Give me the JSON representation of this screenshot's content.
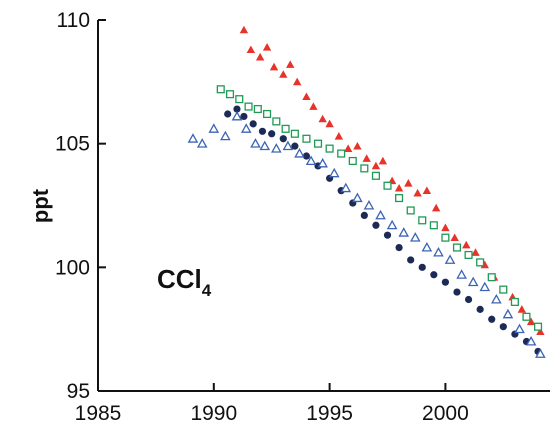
{
  "chart_data": {
    "type": "scatter",
    "title": "",
    "xlabel": "",
    "ylabel": "ppt",
    "annotation": {
      "main": "CCl",
      "subscript": "4"
    },
    "xlim": [
      1985,
      2004.3
    ],
    "ylim": [
      95,
      110
    ],
    "xticks": [
      1985,
      1990,
      1995,
      2000
    ],
    "xtick_labels": [
      "1985",
      "1990",
      "1995",
      "2000"
    ],
    "yticks": [
      95,
      100,
      105,
      110
    ],
    "ytick_labels": [
      "95",
      "100",
      "105",
      "110"
    ],
    "grid": false,
    "legend": "none",
    "series": [
      {
        "color": "#e8332a",
        "marker": "filled-triangle",
        "points": [
          [
            1991.3,
            109.6
          ],
          [
            1991.6,
            108.8
          ],
          [
            1992.0,
            108.5
          ],
          [
            1992.3,
            108.9
          ],
          [
            1992.6,
            108.1
          ],
          [
            1993.0,
            107.8
          ],
          [
            1993.3,
            108.2
          ],
          [
            1993.6,
            107.5
          ],
          [
            1994.0,
            106.9
          ],
          [
            1994.3,
            106.5
          ],
          [
            1994.7,
            106.0
          ],
          [
            1995.0,
            105.8
          ],
          [
            1995.4,
            105.3
          ],
          [
            1995.8,
            104.8
          ],
          [
            1996.2,
            104.9
          ],
          [
            1996.6,
            104.4
          ],
          [
            1997.0,
            104.1
          ],
          [
            1997.3,
            104.3
          ],
          [
            1997.7,
            103.5
          ],
          [
            1998.0,
            103.2
          ],
          [
            1998.4,
            103.4
          ],
          [
            1998.8,
            103.0
          ],
          [
            1999.2,
            103.1
          ],
          [
            1999.6,
            102.4
          ],
          [
            2000.0,
            101.6
          ],
          [
            2000.4,
            101.2
          ],
          [
            2000.9,
            100.9
          ],
          [
            2001.3,
            100.6
          ],
          [
            2001.7,
            100.1
          ],
          [
            2002.1,
            99.6
          ],
          [
            2002.5,
            99.1
          ],
          [
            2002.9,
            98.8
          ],
          [
            2003.3,
            98.3
          ],
          [
            2003.7,
            97.8
          ],
          [
            2004.1,
            97.4
          ]
        ]
      },
      {
        "color": "#1f9a55",
        "marker": "open-square",
        "points": [
          [
            1990.3,
            107.2
          ],
          [
            1990.7,
            107.0
          ],
          [
            1991.1,
            106.8
          ],
          [
            1991.5,
            106.5
          ],
          [
            1991.9,
            106.4
          ],
          [
            1992.3,
            106.2
          ],
          [
            1992.7,
            105.9
          ],
          [
            1993.1,
            105.6
          ],
          [
            1993.5,
            105.4
          ],
          [
            1994.0,
            105.2
          ],
          [
            1994.5,
            105.0
          ],
          [
            1995.0,
            104.8
          ],
          [
            1995.5,
            104.6
          ],
          [
            1996.0,
            104.3
          ],
          [
            1996.5,
            104.0
          ],
          [
            1997.0,
            103.7
          ],
          [
            1997.5,
            103.3
          ],
          [
            1998.0,
            102.8
          ],
          [
            1998.5,
            102.3
          ],
          [
            1999.0,
            101.9
          ],
          [
            1999.5,
            101.7
          ],
          [
            2000.0,
            101.2
          ],
          [
            2000.5,
            100.8
          ],
          [
            2001.0,
            100.5
          ],
          [
            2001.5,
            100.2
          ],
          [
            2002.0,
            99.6
          ],
          [
            2002.5,
            99.1
          ],
          [
            2003.0,
            98.6
          ],
          [
            2003.5,
            98.0
          ],
          [
            2004.0,
            97.6
          ]
        ]
      },
      {
        "color": "#1c2a55",
        "marker": "filled-circle",
        "points": [
          [
            1990.6,
            106.2
          ],
          [
            1991.0,
            106.4
          ],
          [
            1991.3,
            106.1
          ],
          [
            1991.7,
            105.8
          ],
          [
            1992.1,
            105.5
          ],
          [
            1992.5,
            105.4
          ],
          [
            1993.0,
            105.2
          ],
          [
            1993.5,
            104.9
          ],
          [
            1994.0,
            104.5
          ],
          [
            1994.5,
            104.1
          ],
          [
            1995.0,
            103.6
          ],
          [
            1995.5,
            103.1
          ],
          [
            1996.0,
            102.6
          ],
          [
            1996.5,
            102.1
          ],
          [
            1997.0,
            101.7
          ],
          [
            1997.5,
            101.3
          ],
          [
            1998.0,
            100.8
          ],
          [
            1998.5,
            100.3
          ],
          [
            1999.0,
            100.0
          ],
          [
            1999.5,
            99.7
          ],
          [
            2000.0,
            99.4
          ],
          [
            2000.5,
            99.0
          ],
          [
            2001.0,
            98.7
          ],
          [
            2001.5,
            98.3
          ],
          [
            2002.0,
            97.9
          ],
          [
            2002.5,
            97.6
          ],
          [
            2003.0,
            97.3
          ],
          [
            2003.5,
            97.0
          ],
          [
            2004.0,
            96.6
          ]
        ]
      },
      {
        "color": "#3b64b4",
        "marker": "open-triangle",
        "points": [
          [
            1989.1,
            105.2
          ],
          [
            1989.5,
            105.0
          ],
          [
            1990.0,
            105.6
          ],
          [
            1990.5,
            105.3
          ],
          [
            1991.0,
            106.1
          ],
          [
            1991.4,
            105.6
          ],
          [
            1991.8,
            105.0
          ],
          [
            1992.2,
            104.9
          ],
          [
            1992.7,
            104.8
          ],
          [
            1993.2,
            104.9
          ],
          [
            1993.7,
            104.6
          ],
          [
            1994.2,
            104.3
          ],
          [
            1994.7,
            104.2
          ],
          [
            1995.2,
            103.8
          ],
          [
            1995.7,
            103.2
          ],
          [
            1996.2,
            102.8
          ],
          [
            1996.7,
            102.5
          ],
          [
            1997.2,
            102.1
          ],
          [
            1997.7,
            101.7
          ],
          [
            1998.2,
            101.4
          ],
          [
            1998.7,
            101.2
          ],
          [
            1999.2,
            100.8
          ],
          [
            1999.7,
            100.6
          ],
          [
            2000.2,
            100.3
          ],
          [
            2000.7,
            99.7
          ],
          [
            2001.2,
            99.4
          ],
          [
            2001.7,
            99.2
          ],
          [
            2002.2,
            98.7
          ],
          [
            2002.7,
            98.1
          ],
          [
            2003.2,
            97.5
          ],
          [
            2003.7,
            97.0
          ],
          [
            2004.1,
            96.5
          ]
        ]
      }
    ]
  }
}
